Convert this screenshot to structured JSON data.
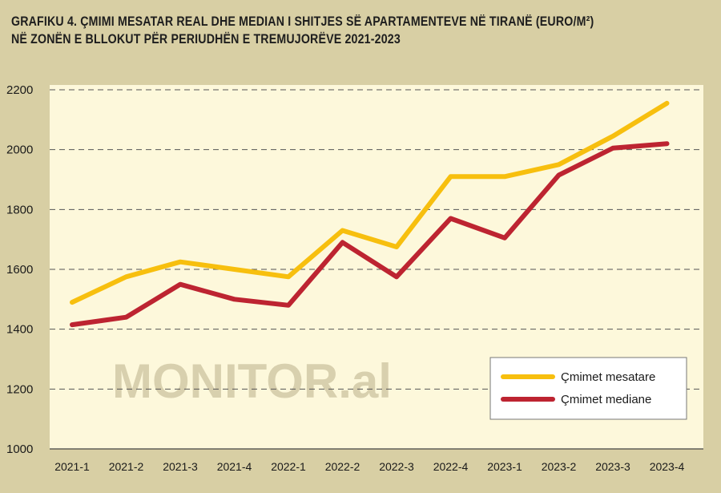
{
  "title_line1": "GRAFIKU 4. ÇMIMI MESATAR REAL DHE MEDIAN I SHITJES SË APARTAMENTEVE NË TIRANË (EURO/M²)",
  "title_line2": "NË ZONËN E BLLOKUT PËR PERIUDHËN E TREMUJORËVE 2021-2023",
  "watermark": "MONITOR.al",
  "colors": {
    "background": "#d8cfa4",
    "plot_area": "#fdf8db",
    "mesatare": "#f7bf0e",
    "mediane": "#bd2431",
    "grid": "#555555"
  },
  "chart_data": {
    "type": "line",
    "title": "GRAFIKU 4. ÇMIMI MESATAR REAL DHE MEDIAN I SHITJES SË APARTAMENTEVE NË TIRANË (EURO/M²) NË ZONËN E BLLOKUT PËR PERIUDHËN E TREMUJORËVE 2021-2023",
    "categories": [
      "2021-1",
      "2021-2",
      "2021-3",
      "2021-4",
      "2022-1",
      "2022-2",
      "2022-3",
      "2022-4",
      "2023-1",
      "2023-2",
      "2023-3",
      "2023-4"
    ],
    "series": [
      {
        "name": "Çmimet mesatare",
        "color": "#f7bf0e",
        "values": [
          1490,
          1575,
          1625,
          1600,
          1575,
          1730,
          1675,
          1910,
          1910,
          1950,
          2045,
          2155
        ]
      },
      {
        "name": "Çmimet mediane",
        "color": "#bd2431",
        "values": [
          1415,
          1440,
          1550,
          1500,
          1480,
          1690,
          1575,
          1770,
          1705,
          1915,
          2005,
          2020
        ]
      }
    ],
    "ylim": [
      1000,
      2200
    ],
    "yticks": [
      1000,
      1200,
      1400,
      1600,
      1800,
      2000,
      2200
    ],
    "xlabel": "",
    "ylabel": "",
    "grid": "horizontal-dashed",
    "legend_position": "bottom-right"
  }
}
